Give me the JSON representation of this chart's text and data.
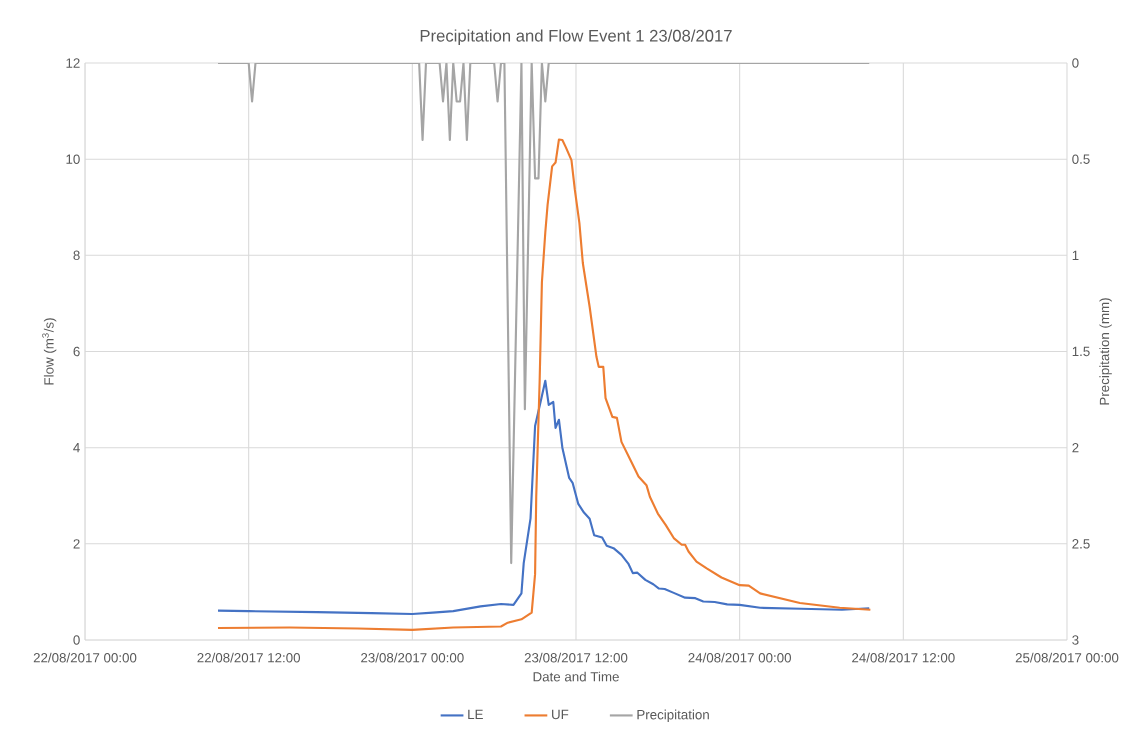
{
  "chart_data": {
    "type": "line",
    "title": "Precipitation and Flow Event 1 23/08/2017",
    "xlabel": "Date and Time",
    "ylabel": "Flow    (m$^{3}$/s)",
    "y2label": "Precipitation (mm)",
    "xlim": [
      "2017-08-22T00:00",
      "2017-08-25T00:00"
    ],
    "xticks": [
      {
        "value": "2017-08-22T00:00",
        "label": "22/08/2017 00:00"
      },
      {
        "value": "2017-08-22T12:00",
        "label": "22/08/2017 12:00"
      },
      {
        "value": "2017-08-23T00:00",
        "label": "23/08/2017 00:00"
      },
      {
        "value": "2017-08-23T12:00",
        "label": "23/08/2017 12:00"
      },
      {
        "value": "2017-08-24T00:00",
        "label": "24/08/2017 00:00"
      },
      {
        "value": "2017-08-24T12:00",
        "label": "24/08/2017 12:00"
      },
      {
        "value": "2017-08-25T00:00",
        "label": "25/08/2017 00:00"
      }
    ],
    "ylim": [
      0,
      12
    ],
    "yticks": [
      0,
      2,
      4,
      6,
      8,
      10,
      12
    ],
    "y2lim": [
      3,
      0
    ],
    "y2ticks": [
      0,
      0.5,
      1,
      1.5,
      2,
      2.5,
      3
    ],
    "grid": true,
    "legend": "bottom",
    "series": [
      {
        "name": "LE",
        "color": "#4472c4",
        "x": [
          "2017-08-22T09:45",
          "2017-08-22T12:00",
          "2017-08-22T17:00",
          "2017-08-22T21:00",
          "2017-08-23T00:00",
          "2017-08-23T01:30",
          "2017-08-23T03:00",
          "2017-08-23T05:00",
          "2017-08-23T06:30",
          "2017-08-23T07:25",
          "2017-08-23T08:00",
          "2017-08-23T08:10",
          "2017-08-23T08:40",
          "2017-08-23T09:00",
          "2017-08-23T09:25",
          "2017-08-23T09:45",
          "2017-08-23T10:00",
          "2017-08-23T10:20",
          "2017-08-23T10:30",
          "2017-08-23T10:45",
          "2017-08-23T11:00",
          "2017-08-23T11:30",
          "2017-08-23T11:45",
          "2017-08-23T12:10",
          "2017-08-23T12:35",
          "2017-08-23T13:00",
          "2017-08-23T13:20",
          "2017-08-23T13:55",
          "2017-08-23T14:15",
          "2017-08-23T14:45",
          "2017-08-23T15:20",
          "2017-08-23T15:50",
          "2017-08-23T16:10",
          "2017-08-23T16:30",
          "2017-08-23T17:05",
          "2017-08-23T17:40",
          "2017-08-23T18:05",
          "2017-08-23T18:30",
          "2017-08-23T19:10",
          "2017-08-23T20:00",
          "2017-08-23T20:45",
          "2017-08-23T21:20",
          "2017-08-23T22:10",
          "2017-08-23T23:05",
          "2017-08-24T00:00",
          "2017-08-24T01:30",
          "2017-08-24T04:30",
          "2017-08-24T07:30",
          "2017-08-24T09:30"
        ],
        "values": [
          0.61,
          0.6,
          0.58,
          0.56,
          0.54,
          0.57,
          0.6,
          0.7,
          0.75,
          0.73,
          0.97,
          1.6,
          2.53,
          4.45,
          4.97,
          5.39,
          4.89,
          4.95,
          4.41,
          4.58,
          4.0,
          3.37,
          3.27,
          2.83,
          2.65,
          2.52,
          2.18,
          2.13,
          1.96,
          1.91,
          1.77,
          1.59,
          1.39,
          1.4,
          1.25,
          1.16,
          1.07,
          1.06,
          0.98,
          0.88,
          0.87,
          0.8,
          0.79,
          0.74,
          0.73,
          0.67,
          0.65,
          0.63,
          0.66
        ]
      },
      {
        "name": "UF",
        "color": "#ed7d31",
        "x": [
          "2017-08-22T09:45",
          "2017-08-22T15:00",
          "2017-08-22T20:00",
          "2017-08-23T00:00",
          "2017-08-23T03:00",
          "2017-08-23T06:30",
          "2017-08-23T07:00",
          "2017-08-23T08:00",
          "2017-08-23T08:45",
          "2017-08-23T09:00",
          "2017-08-23T09:05",
          "2017-08-23T09:20",
          "2017-08-23T09:30",
          "2017-08-23T09:45",
          "2017-08-23T09:55",
          "2017-08-23T10:15",
          "2017-08-23T10:30",
          "2017-08-23T10:45",
          "2017-08-23T11:00",
          "2017-08-23T11:15",
          "2017-08-23T11:40",
          "2017-08-23T11:55",
          "2017-08-23T12:15",
          "2017-08-23T12:30",
          "2017-08-23T13:00",
          "2017-08-23T13:30",
          "2017-08-23T13:40",
          "2017-08-23T14:00",
          "2017-08-23T14:10",
          "2017-08-23T14:40",
          "2017-08-23T15:00",
          "2017-08-23T15:20",
          "2017-08-23T16:00",
          "2017-08-23T16:35",
          "2017-08-23T17:10",
          "2017-08-23T17:25",
          "2017-08-23T18:00",
          "2017-08-23T18:35",
          "2017-08-23T19:10",
          "2017-08-23T19:45",
          "2017-08-23T20:00",
          "2017-08-23T20:15",
          "2017-08-23T20:50",
          "2017-08-23T21:35",
          "2017-08-23T22:40",
          "2017-08-24T00:00",
          "2017-08-24T00:40",
          "2017-08-24T01:30",
          "2017-08-24T04:25",
          "2017-08-24T07:20",
          "2017-08-24T09:35"
        ],
        "values": [
          0.25,
          0.26,
          0.24,
          0.21,
          0.26,
          0.28,
          0.36,
          0.43,
          0.57,
          1.37,
          2.97,
          5.37,
          7.44,
          8.48,
          9.05,
          9.85,
          9.93,
          10.41,
          10.4,
          10.25,
          9.98,
          9.36,
          8.67,
          7.84,
          6.93,
          5.89,
          5.68,
          5.68,
          5.03,
          4.64,
          4.62,
          4.12,
          3.74,
          3.4,
          3.22,
          2.98,
          2.63,
          2.39,
          2.12,
          1.98,
          1.98,
          1.84,
          1.63,
          1.49,
          1.3,
          1.14,
          1.13,
          0.97,
          0.77,
          0.67,
          0.63
        ]
      },
      {
        "name": "Precipitation",
        "color": "#a5a5a5",
        "axis": "y2",
        "x": [
          "2017-08-22T09:45",
          "2017-08-22T12:00",
          "2017-08-22T12:15",
          "2017-08-22T12:30",
          "2017-08-23T00:30",
          "2017-08-23T00:45",
          "2017-08-23T01:00",
          "2017-08-23T02:00",
          "2017-08-23T02:15",
          "2017-08-23T02:30",
          "2017-08-23T02:45",
          "2017-08-23T03:00",
          "2017-08-23T03:15",
          "2017-08-23T03:30",
          "2017-08-23T03:45",
          "2017-08-23T04:00",
          "2017-08-23T04:15",
          "2017-08-23T06:00",
          "2017-08-23T06:15",
          "2017-08-23T06:30",
          "2017-08-23T06:45",
          "2017-08-23T07:15",
          "2017-08-23T08:00",
          "2017-08-23T08:15",
          "2017-08-23T08:45",
          "2017-08-23T09:00",
          "2017-08-23T09:15",
          "2017-08-23T09:30",
          "2017-08-23T09:45",
          "2017-08-23T10:00",
          "2017-08-24T09:30"
        ],
        "values": [
          0,
          0,
          0.2,
          0,
          0,
          0.4,
          0,
          0,
          0.2,
          0,
          0.4,
          0,
          0.2,
          0.2,
          0,
          0.4,
          0,
          0,
          0.2,
          0,
          0,
          2.6,
          0,
          1.8,
          0,
          0.6,
          0.6,
          0,
          0.2,
          0,
          0
        ]
      }
    ]
  }
}
